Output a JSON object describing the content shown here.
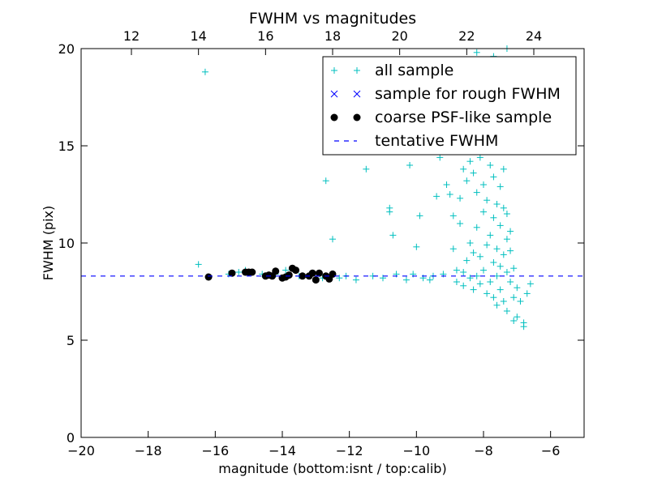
{
  "chart_data": {
    "type": "scatter",
    "title": "FWHM vs magnitudes",
    "xlabel": "magnitude (bottom:isnt / top:calib)",
    "ylabel": "FWHM (pix)",
    "xlim": [
      -20,
      -5
    ],
    "ylim": [
      0,
      20
    ],
    "x_ticks": [
      -20,
      -18,
      -16,
      -14,
      -12,
      -10,
      -8,
      -6
    ],
    "y_ticks": [
      0,
      5,
      10,
      15,
      20
    ],
    "top_axis": {
      "ticks": [
        12,
        14,
        16,
        18,
        20,
        22,
        24
      ],
      "offset": 30.5
    },
    "grid": false,
    "legend_position": "top-right",
    "series": [
      {
        "name": "all sample",
        "marker": "plus",
        "color": "#00bfbf",
        "points": [
          [
            -16.5,
            8.9
          ],
          [
            -16.3,
            18.8
          ],
          [
            -15.6,
            8.4
          ],
          [
            -15.3,
            8.5
          ],
          [
            -15.1,
            8.6
          ],
          [
            -14.6,
            8.4
          ],
          [
            -14.2,
            8.4
          ],
          [
            -13.9,
            8.6
          ],
          [
            -13.5,
            8.3
          ],
          [
            -13.2,
            8.3
          ],
          [
            -12.8,
            8.2
          ],
          [
            -12.7,
            13.2
          ],
          [
            -12.5,
            10.2
          ],
          [
            -12.3,
            8.2
          ],
          [
            -12.1,
            8.3
          ],
          [
            -11.8,
            8.1
          ],
          [
            -11.5,
            13.8
          ],
          [
            -11.3,
            8.3
          ],
          [
            -11.0,
            8.2
          ],
          [
            -10.8,
            11.6
          ],
          [
            -10.8,
            11.8
          ],
          [
            -10.7,
            10.4
          ],
          [
            -10.6,
            8.4
          ],
          [
            -10.5,
            16.5
          ],
          [
            -10.3,
            8.1
          ],
          [
            -10.2,
            14.0
          ],
          [
            -10.1,
            8.4
          ],
          [
            -10.0,
            9.8
          ],
          [
            -9.9,
            11.4
          ],
          [
            -9.8,
            8.2
          ],
          [
            -9.7,
            18.0
          ],
          [
            -9.6,
            8.1
          ],
          [
            -9.5,
            8.3
          ],
          [
            -9.4,
            12.4
          ],
          [
            -9.3,
            14.4
          ],
          [
            -9.2,
            8.4
          ],
          [
            -9.1,
            13.0
          ],
          [
            -9.0,
            12.5
          ],
          [
            -8.9,
            9.7
          ],
          [
            -8.9,
            11.4
          ],
          [
            -8.8,
            8.0
          ],
          [
            -8.8,
            8.6
          ],
          [
            -8.7,
            11.0
          ],
          [
            -8.7,
            12.3
          ],
          [
            -8.6,
            8.5
          ],
          [
            -8.6,
            7.8
          ],
          [
            -8.6,
            13.8
          ],
          [
            -8.5,
            9.1
          ],
          [
            -8.5,
            13.2
          ],
          [
            -8.4,
            8.2
          ],
          [
            -8.4,
            10.0
          ],
          [
            -8.4,
            14.2
          ],
          [
            -8.3,
            7.6
          ],
          [
            -8.3,
            9.5
          ],
          [
            -8.3,
            13.6
          ],
          [
            -8.2,
            8.3
          ],
          [
            -8.2,
            10.8
          ],
          [
            -8.2,
            12.6
          ],
          [
            -8.1,
            14.4
          ],
          [
            -8.1,
            7.9
          ],
          [
            -8.1,
            9.3
          ],
          [
            -8.0,
            8.6
          ],
          [
            -8.0,
            11.6
          ],
          [
            -8.0,
            13.0
          ],
          [
            -7.9,
            7.4
          ],
          [
            -7.9,
            9.9
          ],
          [
            -7.9,
            12.2
          ],
          [
            -7.8,
            8.0
          ],
          [
            -7.8,
            10.4
          ],
          [
            -7.8,
            14.0
          ],
          [
            -7.7,
            7.2
          ],
          [
            -7.7,
            9.0
          ],
          [
            -7.7,
            11.3
          ],
          [
            -7.7,
            13.4
          ],
          [
            -7.6,
            8.3
          ],
          [
            -7.6,
            9.7
          ],
          [
            -7.6,
            12.0
          ],
          [
            -7.6,
            6.8
          ],
          [
            -7.5,
            8.8
          ],
          [
            -7.5,
            10.9
          ],
          [
            -7.5,
            12.9
          ],
          [
            -7.5,
            7.6
          ],
          [
            -7.4,
            9.4
          ],
          [
            -7.4,
            11.8
          ],
          [
            -7.4,
            13.8
          ],
          [
            -7.4,
            7.0
          ],
          [
            -7.3,
            8.5
          ],
          [
            -7.3,
            10.2
          ],
          [
            -7.3,
            11.5
          ],
          [
            -7.3,
            6.5
          ],
          [
            -7.2,
            8.0
          ],
          [
            -7.2,
            9.6
          ],
          [
            -7.2,
            10.6
          ],
          [
            -7.1,
            7.2
          ],
          [
            -7.1,
            8.7
          ],
          [
            -7.1,
            6.0
          ],
          [
            -7.0,
            7.7
          ],
          [
            -7.0,
            6.2
          ],
          [
            -6.9,
            7.0
          ],
          [
            -6.8,
            5.9
          ],
          [
            -6.8,
            5.7
          ],
          [
            -6.7,
            7.4
          ],
          [
            -6.6,
            7.9
          ],
          [
            -9.4,
            20.5
          ],
          [
            -9.0,
            19.2
          ],
          [
            -8.2,
            19.8
          ],
          [
            -7.7,
            19.6
          ],
          [
            -7.3,
            20.0
          ]
        ]
      },
      {
        "name": "sample for rough FWHM",
        "marker": "x",
        "color": "#0000ff",
        "points": []
      },
      {
        "name": "coarse PSF-like sample",
        "marker": "dot",
        "color": "#000000",
        "points": [
          [
            -16.2,
            8.25
          ],
          [
            -15.5,
            8.45
          ],
          [
            -15.0,
            8.5
          ],
          [
            -14.9,
            8.5
          ],
          [
            -14.5,
            8.3
          ],
          [
            -14.3,
            8.3
          ],
          [
            -14.2,
            8.55
          ],
          [
            -14.0,
            8.2
          ],
          [
            -13.9,
            8.25
          ],
          [
            -13.8,
            8.35
          ],
          [
            -13.7,
            8.7
          ],
          [
            -13.6,
            8.6
          ],
          [
            -13.2,
            8.3
          ],
          [
            -13.0,
            8.1
          ],
          [
            -12.9,
            8.45
          ],
          [
            -12.7,
            8.3
          ],
          [
            -12.6,
            8.15
          ],
          [
            -12.5,
            8.4
          ],
          [
            -13.4,
            8.3
          ],
          [
            -14.4,
            8.35
          ],
          [
            -15.1,
            8.5
          ],
          [
            -13.1,
            8.45
          ]
        ]
      },
      {
        "name": "tentative FWHM",
        "marker": "dashed-line",
        "color": "#0000ff",
        "value": 8.3
      }
    ]
  }
}
